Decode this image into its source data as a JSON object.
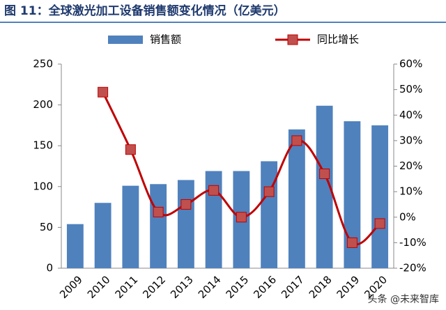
{
  "chart_data": {
    "type": "bar-line",
    "title": "图 11：全球激光加工设备销售额变化情况（亿美元）",
    "categories": [
      "2009",
      "2010",
      "2011",
      "2012",
      "2013",
      "2014",
      "2015",
      "2016",
      "2017",
      "2018",
      "2019",
      "2020"
    ],
    "series": [
      {
        "name": "销售额",
        "color": "#4f81bd",
        "type": "bar",
        "values": [
          54,
          80,
          101,
          103,
          108,
          119,
          119,
          131,
          170,
          199,
          180,
          175
        ]
      },
      {
        "name": "同比增长",
        "color": "#c00000",
        "marker_color": "#c0504d",
        "type": "line",
        "axis": "y2",
        "values": [
          null,
          49,
          26.5,
          2,
          5,
          10.5,
          0,
          10,
          30,
          17,
          -10,
          -2.5
        ]
      }
    ],
    "ylim": [
      0,
      250
    ],
    "yticks": [
      0,
      50,
      100,
      150,
      200,
      250
    ],
    "y2lim": [
      -20,
      60
    ],
    "y2ticks": [
      {
        "value": -20,
        "label": "-20%"
      },
      {
        "value": -10,
        "label": "-10%"
      },
      {
        "value": 0,
        "label": "0%"
      },
      {
        "value": 10,
        "label": "10%"
      },
      {
        "value": 20,
        "label": "20%"
      },
      {
        "value": 30,
        "label": "30%"
      },
      {
        "value": 40,
        "label": "40%"
      },
      {
        "value": 50,
        "label": "50%"
      },
      {
        "value": 60,
        "label": "60%"
      }
    ],
    "watermark": "头条 @未来智库"
  }
}
